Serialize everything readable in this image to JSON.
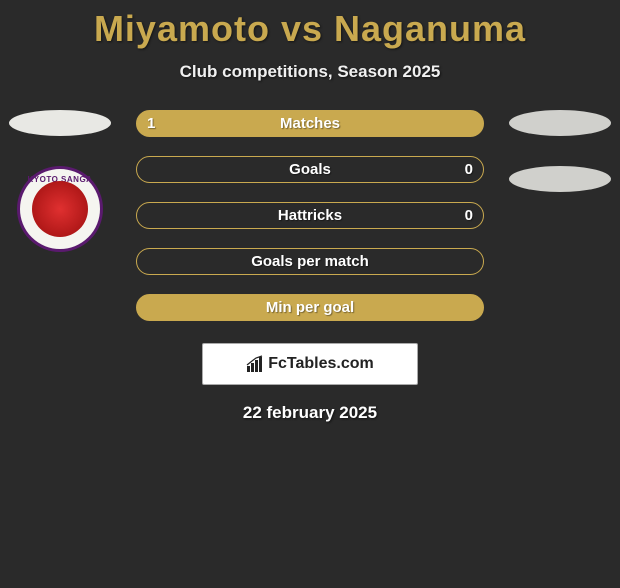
{
  "title": "Miyamoto vs Naganuma",
  "subtitle": "Club competitions, Season 2025",
  "badge_text": "KYOTO SANGA",
  "bars": [
    {
      "label": "Matches",
      "left": "1",
      "right": "",
      "border": "#c9a94f",
      "fill": "#c9a94f",
      "fill_pct": 100
    },
    {
      "label": "Goals",
      "left": "",
      "right": "0",
      "border": "#c9a94f",
      "fill": "transparent",
      "fill_pct": 0
    },
    {
      "label": "Hattricks",
      "left": "",
      "right": "0",
      "border": "#c9a94f",
      "fill": "transparent",
      "fill_pct": 0
    },
    {
      "label": "Goals per match",
      "left": "",
      "right": "",
      "border": "#c9a94f",
      "fill": "transparent",
      "fill_pct": 0
    },
    {
      "label": "Min per goal",
      "left": "",
      "right": "",
      "border": "#c9a94f",
      "fill": "#c9a94f",
      "fill_pct": 100
    }
  ],
  "footer_brand": "FcTables.com",
  "footer_date": "22 february 2025",
  "colors": {
    "accent": "#c9a94f",
    "bg": "#2a2a2a"
  }
}
